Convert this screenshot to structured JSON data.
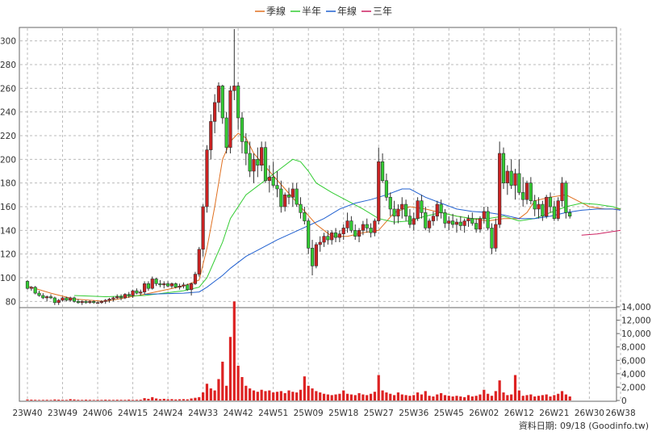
{
  "chart_data": {
    "type": "candlestick",
    "legend": {
      "placement": "top-center",
      "items": [
        {
          "label": "季線",
          "color": "#e07020"
        },
        {
          "label": "半年",
          "color": "#33cc33"
        },
        {
          "label": "年線",
          "color": "#2060d0"
        },
        {
          "label": "三年",
          "color": "#cc2060"
        }
      ]
    },
    "price_axis": {
      "ticks": [
        80,
        100,
        120,
        140,
        160,
        180,
        200,
        220,
        240,
        260,
        280,
        300
      ],
      "range": [
        70,
        310
      ],
      "grid": true
    },
    "volume_axis": {
      "ticks": [
        0,
        2000,
        4000,
        6000,
        8000,
        10000,
        12000,
        14000
      ],
      "tick_labels": [
        "0",
        "2,000",
        "4,000",
        "6,000",
        "8,000",
        "10,000",
        "12,000",
        "14,000"
      ],
      "range": [
        0,
        14000
      ]
    },
    "x_ticks": [
      "23W40",
      "23W49",
      "24W06",
      "24W15",
      "24W24",
      "24W33",
      "24W42",
      "24W51",
      "25W09",
      "25W18",
      "25W27",
      "25W36",
      "25W45",
      "26W02",
      "26W12",
      "26W21",
      "26W30",
      "26W38"
    ],
    "x_tick_index": [
      0,
      9,
      18,
      27,
      36,
      45,
      54,
      63,
      72,
      81,
      90,
      99,
      108,
      117,
      126,
      135,
      144,
      152
    ],
    "candles": [
      [
        97,
        98,
        90,
        91
      ],
      [
        91,
        93,
        89,
        92
      ],
      [
        92,
        93,
        86,
        87
      ],
      [
        87,
        89,
        84,
        85
      ],
      [
        85,
        87,
        82,
        83
      ],
      [
        83,
        85,
        80,
        84
      ],
      [
        84,
        86,
        82,
        83
      ],
      [
        83,
        84,
        77,
        79
      ],
      [
        79,
        82,
        77,
        81
      ],
      [
        81,
        84,
        80,
        83
      ],
      [
        83,
        84,
        80,
        81
      ],
      [
        81,
        84,
        80,
        83
      ],
      [
        83,
        84,
        79,
        80
      ],
      [
        80,
        82,
        78,
        79
      ],
      [
        79,
        81,
        77,
        80
      ],
      [
        80,
        81,
        78,
        79
      ],
      [
        79,
        81,
        78,
        80
      ],
      [
        80,
        81,
        78,
        79
      ],
      [
        79,
        80,
        78,
        79
      ],
      [
        79,
        81,
        78,
        80
      ],
      [
        80,
        82,
        78,
        81
      ],
      [
        81,
        83,
        79,
        82
      ],
      [
        82,
        84,
        80,
        83
      ],
      [
        83,
        86,
        82,
        84
      ],
      [
        84,
        86,
        81,
        83
      ],
      [
        83,
        87,
        82,
        86
      ],
      [
        86,
        88,
        83,
        85
      ],
      [
        85,
        90,
        83,
        89
      ],
      [
        89,
        91,
        86,
        87
      ],
      [
        87,
        90,
        85,
        88
      ],
      [
        88,
        97,
        86,
        95
      ],
      [
        95,
        97,
        89,
        91
      ],
      [
        91,
        101,
        90,
        99
      ],
      [
        99,
        100,
        93,
        95
      ],
      [
        95,
        98,
        92,
        94
      ],
      [
        94,
        97,
        91,
        95
      ],
      [
        95,
        97,
        92,
        93
      ],
      [
        93,
        96,
        91,
        95
      ],
      [
        95,
        96,
        91,
        92
      ],
      [
        92,
        95,
        90,
        93
      ],
      [
        93,
        96,
        91,
        94
      ],
      [
        94,
        95,
        89,
        90
      ],
      [
        90,
        96,
        85,
        95
      ],
      [
        95,
        105,
        94,
        103
      ],
      [
        103,
        126,
        101,
        124
      ],
      [
        124,
        162,
        118,
        160
      ],
      [
        160,
        212,
        155,
        208
      ],
      [
        208,
        238,
        200,
        232
      ],
      [
        232,
        255,
        222,
        248
      ],
      [
        248,
        265,
        240,
        262
      ],
      [
        262,
        263,
        230,
        235
      ],
      [
        235,
        240,
        205,
        210
      ],
      [
        210,
        262,
        205,
        258
      ],
      [
        258,
        310,
        250,
        262
      ],
      [
        262,
        265,
        225,
        235
      ],
      [
        235,
        240,
        205,
        215
      ],
      [
        215,
        222,
        195,
        205
      ],
      [
        205,
        215,
        185,
        190
      ],
      [
        190,
        205,
        180,
        200
      ],
      [
        200,
        210,
        185,
        195
      ],
      [
        195,
        215,
        190,
        210
      ],
      [
        210,
        215,
        180,
        182
      ],
      [
        182,
        195,
        172,
        185
      ],
      [
        185,
        198,
        176,
        178
      ],
      [
        178,
        190,
        168,
        175
      ],
      [
        175,
        182,
        155,
        160
      ],
      [
        160,
        172,
        156,
        170
      ],
      [
        170,
        176,
        162,
        168
      ],
      [
        168,
        180,
        160,
        175
      ],
      [
        175,
        180,
        160,
        162
      ],
      [
        162,
        168,
        150,
        155
      ],
      [
        155,
        160,
        145,
        148
      ],
      [
        148,
        150,
        120,
        125
      ],
      [
        125,
        132,
        102,
        110
      ],
      [
        110,
        130,
        108,
        128
      ],
      [
        128,
        135,
        122,
        130
      ],
      [
        130,
        138,
        126,
        135
      ],
      [
        135,
        140,
        128,
        132
      ],
      [
        132,
        140,
        128,
        138
      ],
      [
        138,
        142,
        130,
        134
      ],
      [
        134,
        140,
        130,
        137
      ],
      [
        137,
        145,
        132,
        142
      ],
      [
        142,
        155,
        138,
        148
      ],
      [
        148,
        152,
        138,
        140
      ],
      [
        140,
        145,
        132,
        135
      ],
      [
        135,
        142,
        130,
        140
      ],
      [
        140,
        148,
        136,
        145
      ],
      [
        145,
        150,
        138,
        142
      ],
      [
        142,
        146,
        134,
        138
      ],
      [
        138,
        150,
        135,
        148
      ],
      [
        148,
        210,
        145,
        198
      ],
      [
        198,
        205,
        180,
        182
      ],
      [
        182,
        188,
        165,
        168
      ],
      [
        168,
        172,
        152,
        158
      ],
      [
        158,
        165,
        145,
        152
      ],
      [
        152,
        162,
        146,
        158
      ],
      [
        158,
        168,
        150,
        162
      ],
      [
        162,
        166,
        148,
        152
      ],
      [
        152,
        158,
        142,
        145
      ],
      [
        145,
        155,
        140,
        150
      ],
      [
        150,
        168,
        148,
        165
      ],
      [
        165,
        170,
        150,
        155
      ],
      [
        155,
        160,
        140,
        142
      ],
      [
        142,
        150,
        138,
        148
      ],
      [
        148,
        156,
        144,
        152
      ],
      [
        152,
        165,
        148,
        162
      ],
      [
        162,
        166,
        150,
        155
      ],
      [
        155,
        158,
        142,
        146
      ],
      [
        146,
        152,
        140,
        148
      ],
      [
        148,
        154,
        142,
        145
      ],
      [
        145,
        150,
        138,
        147
      ],
      [
        147,
        152,
        140,
        144
      ],
      [
        144,
        150,
        138,
        148
      ],
      [
        148,
        153,
        143,
        150
      ],
      [
        150,
        155,
        144,
        146
      ],
      [
        146,
        150,
        138,
        141
      ],
      [
        141,
        152,
        138,
        150
      ],
      [
        150,
        160,
        146,
        156
      ],
      [
        156,
        160,
        140,
        142
      ],
      [
        142,
        146,
        120,
        125
      ],
      [
        125,
        150,
        122,
        145
      ],
      [
        145,
        215,
        142,
        205
      ],
      [
        205,
        210,
        175,
        180
      ],
      [
        180,
        195,
        170,
        190
      ],
      [
        190,
        200,
        175,
        178
      ],
      [
        178,
        192,
        166,
        188
      ],
      [
        188,
        200,
        170,
        172
      ],
      [
        172,
        185,
        160,
        166
      ],
      [
        166,
        182,
        162,
        180
      ],
      [
        180,
        185,
        162,
        165
      ],
      [
        165,
        170,
        152,
        158
      ],
      [
        158,
        168,
        150,
        162
      ],
      [
        162,
        165,
        148,
        152
      ],
      [
        152,
        170,
        150,
        168
      ],
      [
        168,
        172,
        155,
        160
      ],
      [
        160,
        165,
        148,
        150
      ],
      [
        150,
        168,
        148,
        165
      ],
      [
        165,
        185,
        160,
        180
      ],
      [
        180,
        182,
        150,
        155
      ],
      [
        155,
        158,
        150,
        152
      ]
    ],
    "volume": [
      150,
      120,
      100,
      80,
      90,
      100,
      80,
      150,
      120,
      100,
      90,
      200,
      150,
      100,
      90,
      120,
      100,
      80,
      100,
      90,
      120,
      100,
      90,
      110,
      100,
      90,
      130,
      90,
      100,
      120,
      350,
      250,
      500,
      300,
      200,
      250,
      180,
      200,
      150,
      180,
      200,
      170,
      300,
      400,
      500,
      1200,
      2500,
      1800,
      1500,
      3200,
      5800,
      2200,
      9500,
      14800,
      5200,
      3500,
      2200,
      1800,
      1500,
      1300,
      1600,
      1400,
      1500,
      1200,
      1300,
      1400,
      1100,
      1500,
      1300,
      1200,
      1600,
      3600,
      2200,
      1800,
      1400,
      1200,
      1000,
      900,
      800,
      900,
      1000,
      1500,
      1000,
      900,
      800,
      1100,
      900,
      800,
      1000,
      1300,
      3800,
      1500,
      1200,
      1000,
      800,
      1200,
      900,
      800,
      700,
      800,
      1200,
      900,
      1400,
      700,
      600,
      900,
      1100,
      800,
      700,
      600,
      700,
      600,
      500,
      800,
      600,
      700,
      900,
      1600,
      1000,
      700,
      1400,
      3000,
      1200,
      800,
      900,
      3800,
      1500,
      700,
      800,
      900,
      600,
      700,
      800,
      900,
      600,
      800,
      1000,
      1400,
      900,
      600
    ],
    "moving_averages": [
      {
        "label": "季線",
        "points": [
          [
            0,
            93
          ],
          [
            6,
            87
          ],
          [
            12,
            82
          ],
          [
            20,
            80
          ],
          [
            30,
            86
          ],
          [
            40,
            93
          ],
          [
            44,
            98
          ],
          [
            46,
            125
          ],
          [
            48,
            160
          ],
          [
            50,
            200
          ],
          [
            52,
            215
          ],
          [
            54,
            222
          ],
          [
            56,
            218
          ],
          [
            58,
            205
          ],
          [
            62,
            190
          ],
          [
            66,
            175
          ],
          [
            70,
            160
          ],
          [
            74,
            145
          ],
          [
            78,
            135
          ],
          [
            82,
            135
          ],
          [
            86,
            138
          ],
          [
            90,
            140
          ],
          [
            94,
            155
          ],
          [
            98,
            160
          ],
          [
            102,
            158
          ],
          [
            106,
            155
          ],
          [
            110,
            152
          ],
          [
            114,
            150
          ],
          [
            118,
            148
          ],
          [
            122,
            150
          ],
          [
            126,
            150
          ],
          [
            128,
            155
          ],
          [
            130,
            165
          ],
          [
            134,
            168
          ],
          [
            138,
            170
          ],
          [
            141,
            165
          ],
          [
            144,
            160
          ],
          [
            148,
            158
          ],
          [
            152,
            158
          ]
        ]
      },
      {
        "label": "半年",
        "points": [
          [
            12,
            85
          ],
          [
            20,
            84
          ],
          [
            30,
            85
          ],
          [
            40,
            89
          ],
          [
            44,
            92
          ],
          [
            46,
            100
          ],
          [
            48,
            115
          ],
          [
            50,
            130
          ],
          [
            52,
            150
          ],
          [
            56,
            170
          ],
          [
            60,
            180
          ],
          [
            64,
            190
          ],
          [
            68,
            200
          ],
          [
            70,
            198
          ],
          [
            72,
            190
          ],
          [
            74,
            180
          ],
          [
            78,
            172
          ],
          [
            82,
            165
          ],
          [
            86,
            158
          ],
          [
            90,
            150
          ],
          [
            94,
            147
          ],
          [
            98,
            148
          ],
          [
            102,
            152
          ],
          [
            106,
            155
          ],
          [
            110,
            152
          ],
          [
            114,
            150
          ],
          [
            118,
            150
          ],
          [
            122,
            152
          ],
          [
            126,
            148
          ],
          [
            130,
            150
          ],
          [
            134,
            155
          ],
          [
            138,
            160
          ],
          [
            142,
            163
          ],
          [
            146,
            162
          ],
          [
            150,
            160
          ],
          [
            152,
            158
          ]
        ]
      },
      {
        "label": "年線",
        "points": [
          [
            30,
            86
          ],
          [
            40,
            87
          ],
          [
            44,
            88
          ],
          [
            46,
            92
          ],
          [
            48,
            97
          ],
          [
            50,
            102
          ],
          [
            52,
            108
          ],
          [
            56,
            118
          ],
          [
            60,
            125
          ],
          [
            64,
            132
          ],
          [
            68,
            138
          ],
          [
            72,
            144
          ],
          [
            76,
            150
          ],
          [
            80,
            158
          ],
          [
            84,
            163
          ],
          [
            88,
            166
          ],
          [
            92,
            170
          ],
          [
            96,
            175
          ],
          [
            98,
            175
          ],
          [
            102,
            168
          ],
          [
            106,
            163
          ],
          [
            110,
            158
          ],
          [
            114,
            156
          ],
          [
            118,
            155
          ],
          [
            122,
            153
          ],
          [
            126,
            150
          ],
          [
            130,
            150
          ],
          [
            134,
            152
          ],
          [
            138,
            155
          ],
          [
            142,
            157
          ],
          [
            146,
            158
          ],
          [
            150,
            158
          ],
          [
            152,
            157
          ]
        ]
      },
      {
        "label": "三年",
        "points": [
          [
            142,
            136
          ],
          [
            146,
            137
          ],
          [
            150,
            139
          ],
          [
            152,
            140
          ]
        ]
      }
    ]
  },
  "footer": {
    "source_text": "資料日期: 09/18  (Goodinfo.tw)"
  }
}
